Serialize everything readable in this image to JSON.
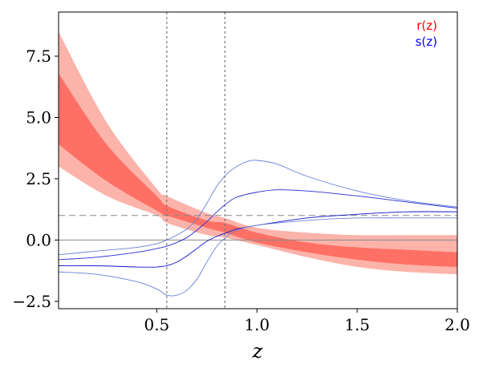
{
  "chart_data": {
    "type": "line",
    "xlabel": "z",
    "ylabel": "",
    "title": "",
    "xlim": [
      0.01,
      2.0
    ],
    "ylim": [
      -2.8,
      9.3
    ],
    "x_ticks": [
      0.5,
      1.0,
      1.5,
      2.0
    ],
    "x_tick_labels": [
      "0.5",
      "1.0",
      "1.5",
      "2.0"
    ],
    "y_ticks": [
      -2.5,
      0.0,
      2.5,
      5.0,
      7.5
    ],
    "y_tick_labels": [
      "−2.5",
      "0.0",
      "2.5",
      "5.0",
      "7.5"
    ],
    "grid": false,
    "legend_position": "top-right",
    "legend": [
      {
        "label": "r(z)",
        "color": "#ff0000"
      },
      {
        "label": "s(z)",
        "color": "#0000ff"
      }
    ],
    "reference_lines": {
      "horizontal": [
        {
          "y": 1.0,
          "style": "dashed",
          "color": "#888888"
        },
        {
          "y": 0.0,
          "style": "solid",
          "color": "#888888"
        }
      ],
      "vertical": [
        {
          "x": 0.55,
          "style": "dotted",
          "color": "#777777"
        },
        {
          "x": 0.84,
          "style": "dotted",
          "color": "#777777"
        }
      ]
    },
    "r_band_outer": {
      "color": "#fa8072",
      "opacity": 0.6,
      "x": [
        0.01,
        0.25,
        0.5,
        0.55,
        0.75,
        0.84,
        1.0,
        1.25,
        1.5,
        1.75,
        2.0
      ],
      "upper": [
        8.5,
        4.8,
        2.1,
        1.8,
        1.1,
        0.9,
        0.5,
        0.3,
        0.2,
        0.2,
        0.2
      ],
      "lower": [
        3.0,
        1.8,
        1.0,
        0.7,
        0.2,
        0.1,
        -0.2,
        -0.7,
        -1.1,
        -1.3,
        -1.4
      ]
    },
    "r_band_inner": {
      "color": "#ff5a4d",
      "opacity": 0.75,
      "x": [
        0.01,
        0.25,
        0.5,
        0.55,
        0.75,
        0.84,
        1.0,
        1.25,
        1.5,
        1.75,
        2.0
      ],
      "upper": [
        6.8,
        3.9,
        1.8,
        1.4,
        0.8,
        0.7,
        0.3,
        -0.1,
        -0.3,
        -0.4,
        -0.5
      ],
      "lower": [
        3.9,
        2.4,
        1.2,
        1.0,
        0.5,
        0.3,
        -0.1,
        -0.5,
        -0.8,
        -1.0,
        -1.1
      ]
    },
    "s_curves": [
      {
        "color": "#6a7fd8",
        "width": 0.9,
        "x": [
          0.01,
          0.2,
          0.4,
          0.5,
          0.55,
          0.6,
          0.65,
          0.7,
          0.75,
          0.8,
          0.85,
          0.9,
          0.95,
          1.0,
          1.1,
          1.25,
          1.5,
          1.75,
          2.0
        ],
        "y": [
          -0.6,
          -0.45,
          -0.3,
          -0.15,
          0.0,
          0.2,
          0.45,
          0.85,
          1.5,
          2.2,
          2.7,
          3.0,
          3.2,
          3.25,
          3.1,
          2.6,
          2.0,
          1.6,
          1.35
        ]
      },
      {
        "color": "#2a2ad4",
        "width": 0.9,
        "x": [
          0.01,
          0.2,
          0.4,
          0.5,
          0.55,
          0.6,
          0.65,
          0.7,
          0.75,
          0.8,
          0.85,
          0.9,
          1.0,
          1.1,
          1.25,
          1.5,
          1.75,
          2.0
        ],
        "y": [
          -0.8,
          -0.7,
          -0.5,
          -0.35,
          -0.25,
          -0.1,
          0.1,
          0.4,
          0.75,
          1.15,
          1.5,
          1.75,
          1.95,
          2.05,
          2.0,
          1.8,
          1.55,
          1.3
        ]
      },
      {
        "color": "#1414c8",
        "width": 0.9,
        "x": [
          0.01,
          0.2,
          0.4,
          0.5,
          0.55,
          0.6,
          0.65,
          0.7,
          0.75,
          0.8,
          0.85,
          0.9,
          1.0,
          1.25,
          1.5,
          1.75,
          2.0
        ],
        "y": [
          -1.05,
          -1.05,
          -1.1,
          -1.1,
          -1.05,
          -0.9,
          -0.65,
          -0.35,
          -0.05,
          0.15,
          0.3,
          0.45,
          0.6,
          0.9,
          1.05,
          1.15,
          1.15
        ]
      },
      {
        "color": "#6a7fd8",
        "width": 0.9,
        "x": [
          0.01,
          0.2,
          0.4,
          0.5,
          0.55,
          0.6,
          0.65,
          0.7,
          0.75,
          0.8,
          0.85,
          0.9,
          1.0,
          1.25,
          1.5,
          1.75,
          2.0
        ],
        "y": [
          -1.3,
          -1.4,
          -1.7,
          -2.0,
          -2.25,
          -2.25,
          -2.05,
          -1.6,
          -0.9,
          -0.25,
          0.15,
          0.4,
          0.6,
          0.8,
          0.9,
          0.9,
          0.9
        ]
      }
    ]
  }
}
